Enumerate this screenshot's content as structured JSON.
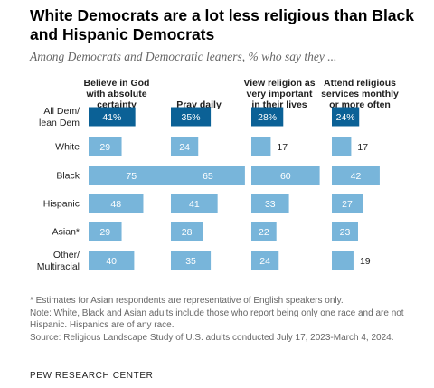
{
  "title": "White Democrats are a lot less religious than Black and Hispanic Democrats",
  "subtitle": "Among Democrats and Democratic leaners, % who say they ...",
  "notes": [
    "* Estimates for Asian respondents are representative of English speakers only.",
    "Note: White, Black and Asian adults include those who report being only one race and are not Hispanic. Hispanics are of any race.",
    "Source: Religious Landscape Study of U.S. adults conducted July 17, 2023-March 4, 2024."
  ],
  "source_brand": "PEW RESEARCH CENTER",
  "colors": {
    "highlight": "#0b6196",
    "bar": "#78b5da",
    "highlight_text": "#ffffff",
    "bar_text": "#ffffff",
    "outside_text": "#1f1f1f"
  },
  "chart_data": {
    "type": "bar",
    "orientation": "horizontal",
    "percent_suffix_on_first_row": true,
    "categories": [
      [
        "All Dem/",
        "lean Dem"
      ],
      [
        "White"
      ],
      [
        "Black"
      ],
      [
        "Hispanic"
      ],
      [
        "Asian*"
      ],
      [
        "Other/",
        "Multiracial"
      ]
    ],
    "series": [
      {
        "name": [
          "Believe in God",
          "with absolute",
          "certainty"
        ],
        "values": [
          41,
          29,
          75,
          48,
          29,
          40
        ]
      },
      {
        "name": [
          "Pray daily"
        ],
        "values": [
          35,
          24,
          65,
          41,
          28,
          35
        ]
      },
      {
        "name": [
          "View religion as",
          "very important",
          "in their lives"
        ],
        "values": [
          28,
          17,
          60,
          33,
          22,
          24
        ]
      },
      {
        "name": [
          "Attend religious",
          "services monthly",
          "or more often"
        ],
        "values": [
          24,
          17,
          42,
          27,
          23,
          19
        ]
      }
    ],
    "highlight_row": 0,
    "xlim": [
      0,
      100
    ]
  }
}
